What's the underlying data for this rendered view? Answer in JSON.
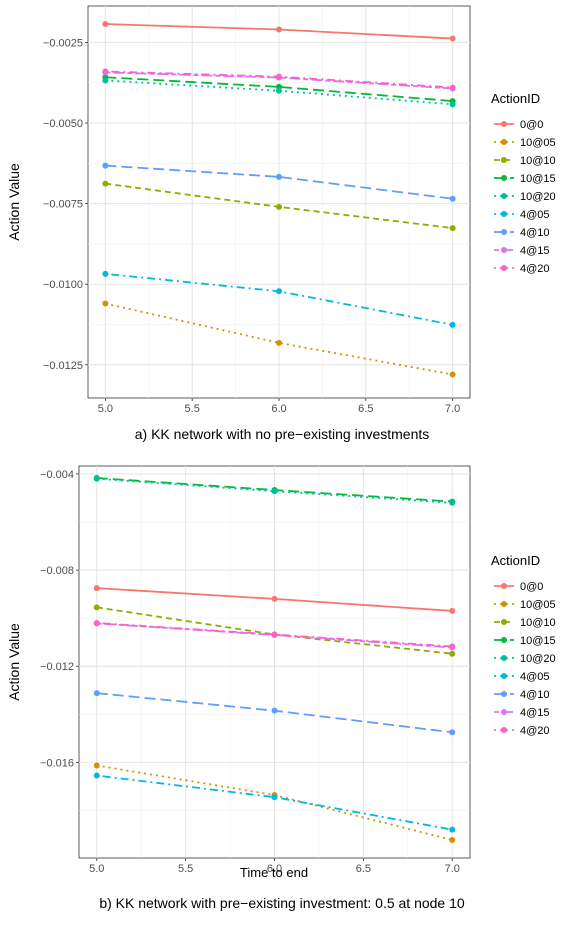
{
  "charts": [
    {
      "caption": "a) KK network with no pre−existing investments",
      "chart_data": {
        "type": "line",
        "title": "",
        "xlabel": "",
        "ylabel": "Action Value",
        "x": [
          5.0,
          6.0,
          7.0
        ],
        "xlim": [
          4.9,
          7.1
        ],
        "ylim": [
          -0.01353,
          -0.00137
        ],
        "xticks": [
          {
            "value": 5.0,
            "label": "5.0"
          },
          {
            "value": 5.5,
            "label": "5.5"
          },
          {
            "value": 6.0,
            "label": "6.0"
          },
          {
            "value": 6.5,
            "label": "6.5"
          },
          {
            "value": 7.0,
            "label": "7.0"
          }
        ],
        "yticks": [
          {
            "value": -0.0025,
            "label": "−0.0025"
          },
          {
            "value": -0.005,
            "label": "−0.0050"
          },
          {
            "value": -0.0075,
            "label": "−0.0075"
          },
          {
            "value": -0.01,
            "label": "−0.0100"
          },
          {
            "value": -0.0125,
            "label": "−0.0125"
          }
        ],
        "grid": true,
        "legend_title": "ActionID",
        "legend_position": "right",
        "series": [
          {
            "name": "0@0",
            "color": "#F8766D",
            "dash": "solid",
            "values": [
              -0.00193,
              -0.0021,
              -0.00238
            ]
          },
          {
            "name": "10@05",
            "color": "#D39200",
            "dash": "dotted",
            "values": [
              -0.0106,
              -0.01182,
              -0.0128
            ]
          },
          {
            "name": "10@10",
            "color": "#93AA00",
            "dash": "dashed",
            "values": [
              -0.00688,
              -0.0076,
              -0.00826
            ]
          },
          {
            "name": "10@15",
            "color": "#00BA38",
            "dash": "longdash",
            "values": [
              -0.00358,
              -0.00388,
              -0.00432
            ]
          },
          {
            "name": "10@20",
            "color": "#00C19F",
            "dash": "dotted",
            "values": [
              -0.00368,
              -0.004,
              -0.00442
            ]
          },
          {
            "name": "4@05",
            "color": "#00B9E3",
            "dash": "dotdash",
            "values": [
              -0.00968,
              -0.01022,
              -0.01126
            ]
          },
          {
            "name": "4@10",
            "color": "#619CFF",
            "dash": "longdash",
            "values": [
              -0.00632,
              -0.00667,
              -0.00735
            ]
          },
          {
            "name": "4@15",
            "color": "#DB72FB",
            "dash": "twodash",
            "values": [
              -0.00343,
              -0.00359,
              -0.00393
            ]
          },
          {
            "name": "4@20",
            "color": "#FF61C3",
            "dash": "dotdash",
            "values": [
              -0.0034,
              -0.00356,
              -0.0039
            ]
          }
        ]
      }
    },
    {
      "caption": "b) KK network with pre−existing investment: 0.5 at node 10",
      "chart_data": {
        "type": "line",
        "title": "",
        "xlabel": "Time to end",
        "ylabel": "Action Value",
        "x": [
          5.0,
          6.0,
          7.0
        ],
        "xlim": [
          4.9,
          7.1
        ],
        "ylim": [
          -0.01998,
          -0.00367
        ],
        "xticks": [
          {
            "value": 5.0,
            "label": "5.0"
          },
          {
            "value": 5.5,
            "label": "5.5"
          },
          {
            "value": 6.0,
            "label": "6.0"
          },
          {
            "value": 6.5,
            "label": "6.5"
          },
          {
            "value": 7.0,
            "label": "7.0"
          }
        ],
        "yticks": [
          {
            "value": -0.004,
            "label": "−0.004"
          },
          {
            "value": -0.008,
            "label": "−0.008"
          },
          {
            "value": -0.012,
            "label": "−0.012"
          },
          {
            "value": -0.016,
            "label": "−0.016"
          }
        ],
        "grid": true,
        "legend_title": "ActionID",
        "legend_position": "right",
        "series": [
          {
            "name": "0@0",
            "color": "#F8766D",
            "dash": "solid",
            "values": [
              -0.00875,
              -0.0092,
              -0.0097
            ]
          },
          {
            "name": "10@05",
            "color": "#D39200",
            "dash": "dotted",
            "values": [
              -0.01613,
              -0.01736,
              -0.01923
            ]
          },
          {
            "name": "10@10",
            "color": "#93AA00",
            "dash": "dashed",
            "values": [
              -0.00955,
              -0.01068,
              -0.01148
            ]
          },
          {
            "name": "10@15",
            "color": "#00BA38",
            "dash": "longdash",
            "values": [
              -0.00417,
              -0.00467,
              -0.00515
            ]
          },
          {
            "name": "10@20",
            "color": "#00C19F",
            "dash": "dotted",
            "values": [
              -0.0042,
              -0.00472,
              -0.0052
            ]
          },
          {
            "name": "4@05",
            "color": "#00B9E3",
            "dash": "dotdash",
            "values": [
              -0.01655,
              -0.01745,
              -0.0188
            ]
          },
          {
            "name": "4@10",
            "color": "#619CFF",
            "dash": "longdash",
            "values": [
              -0.01312,
              -0.01385,
              -0.01475
            ]
          },
          {
            "name": "4@15",
            "color": "#DB72FB",
            "dash": "twodash",
            "values": [
              -0.01022,
              -0.0107,
              -0.01122
            ]
          },
          {
            "name": "4@20",
            "color": "#FF61C3",
            "dash": "dotdash",
            "values": [
              -0.0102,
              -0.01068,
              -0.01118
            ]
          }
        ]
      }
    }
  ]
}
